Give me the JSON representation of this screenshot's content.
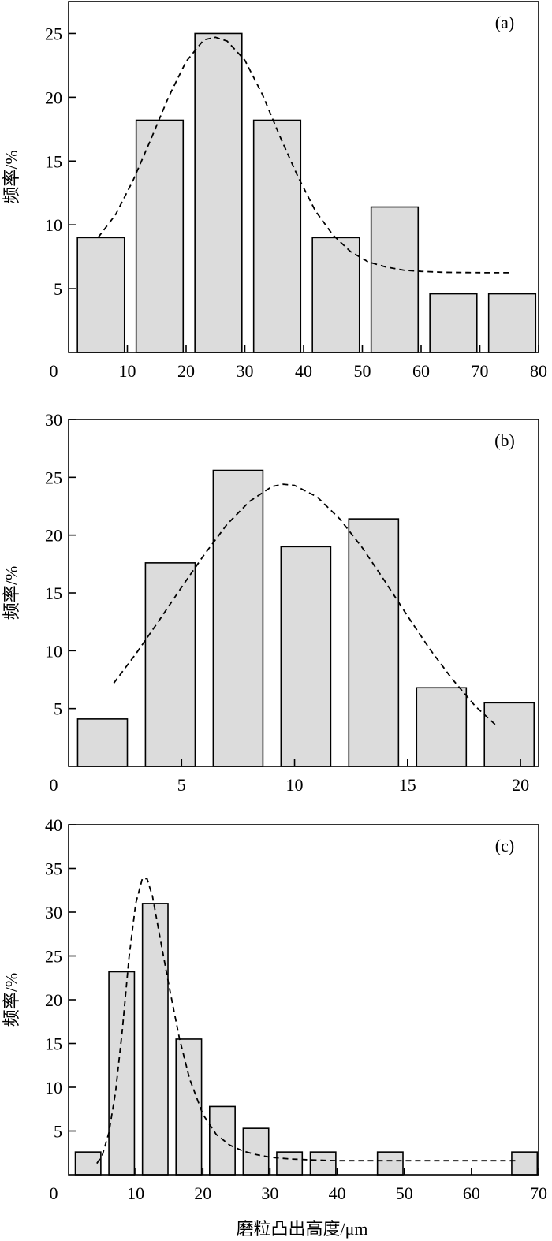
{
  "chart_data": [
    {
      "type": "bar",
      "panel_label": "(a)",
      "ylabel": "频率/%",
      "xlabel": "",
      "xlim": [
        0,
        80
      ],
      "ylim": [
        0,
        27.5
      ],
      "xticks": [
        0,
        10,
        20,
        30,
        40,
        50,
        60,
        70,
        80
      ],
      "yticks": [
        5,
        10,
        15,
        20,
        25
      ],
      "origin_label": "0",
      "bars": [
        {
          "x0": 1.5,
          "x1": 9.5,
          "value": 9.0
        },
        {
          "x0": 11.5,
          "x1": 19.5,
          "value": 18.2
        },
        {
          "x0": 21.5,
          "x1": 29.5,
          "value": 25.0
        },
        {
          "x0": 31.5,
          "x1": 39.5,
          "value": 18.2
        },
        {
          "x0": 41.5,
          "x1": 49.5,
          "value": 9.0
        },
        {
          "x0": 51.5,
          "x1": 59.5,
          "value": 11.4
        },
        {
          "x0": 61.5,
          "x1": 69.5,
          "value": 4.6
        },
        {
          "x0": 71.5,
          "x1": 79.5,
          "value": 4.6
        }
      ],
      "fit_curve": {
        "x": [
          5,
          8,
          11,
          14,
          17,
          20,
          23,
          25,
          27,
          30,
          33,
          36,
          39,
          42,
          45,
          48,
          51,
          54,
          57,
          60,
          64,
          68,
          72,
          75
        ],
        "y": [
          9.0,
          10.8,
          13.5,
          16.7,
          20.0,
          22.8,
          24.5,
          24.7,
          24.4,
          22.9,
          20.2,
          16.9,
          13.8,
          11.1,
          9.2,
          7.9,
          7.1,
          6.7,
          6.45,
          6.35,
          6.28,
          6.26,
          6.25,
          6.25
        ]
      }
    },
    {
      "type": "bar",
      "panel_label": "(b)",
      "ylabel": "频率/%",
      "xlabel": "",
      "xlim": [
        0,
        20.8
      ],
      "ylim": [
        0,
        30
      ],
      "xticks": [
        5,
        10,
        15,
        20
      ],
      "yticks": [
        5,
        10,
        15,
        20,
        25,
        30
      ],
      "origin_label": "0",
      "bars": [
        {
          "x0": 0.4,
          "x1": 2.6,
          "value": 4.1
        },
        {
          "x0": 3.4,
          "x1": 5.6,
          "value": 17.6
        },
        {
          "x0": 6.4,
          "x1": 8.6,
          "value": 25.6
        },
        {
          "x0": 9.4,
          "x1": 11.6,
          "value": 19.0
        },
        {
          "x0": 12.4,
          "x1": 14.6,
          "value": 21.4
        },
        {
          "x0": 15.4,
          "x1": 17.6,
          "value": 6.8
        },
        {
          "x0": 18.4,
          "x1": 20.6,
          "value": 5.5
        }
      ],
      "fit_curve": {
        "x": [
          2,
          3,
          4,
          5,
          6,
          7,
          8,
          9,
          9.5,
          10,
          11,
          12,
          13,
          14,
          15,
          16,
          17,
          18,
          19
        ],
        "y": [
          7.2,
          9.8,
          12.6,
          15.5,
          18.3,
          20.9,
          22.9,
          24.2,
          24.4,
          24.3,
          23.3,
          21.4,
          18.9,
          16.0,
          13.0,
          10.1,
          7.5,
          5.2,
          3.4
        ]
      }
    },
    {
      "type": "bar",
      "panel_label": "(c)",
      "ylabel": "频率/%",
      "xlabel": "磨粒凸出高度/μm",
      "xlim": [
        0,
        70
      ],
      "ylim": [
        0,
        40
      ],
      "xticks": [
        0,
        10,
        20,
        30,
        40,
        50,
        60,
        70
      ],
      "yticks": [
        5,
        10,
        15,
        20,
        25,
        30,
        35,
        40
      ],
      "origin_label": "0",
      "bars": [
        {
          "x0": 1,
          "x1": 4.8,
          "value": 2.6
        },
        {
          "x0": 6,
          "x1": 9.8,
          "value": 23.2
        },
        {
          "x0": 11,
          "x1": 14.8,
          "value": 31.0
        },
        {
          "x0": 16,
          "x1": 19.8,
          "value": 15.5
        },
        {
          "x0": 21,
          "x1": 24.8,
          "value": 7.8
        },
        {
          "x0": 26,
          "x1": 29.8,
          "value": 5.3
        },
        {
          "x0": 31,
          "x1": 34.8,
          "value": 2.6
        },
        {
          "x0": 36,
          "x1": 39.8,
          "value": 2.6
        },
        {
          "x0": 46,
          "x1": 49.8,
          "value": 2.6
        },
        {
          "x0": 66,
          "x1": 69.8,
          "value": 2.6
        }
      ],
      "fit_curve": {
        "x": [
          4.2,
          5,
          6,
          7,
          8,
          9,
          10,
          11,
          11.7,
          12.5,
          13.5,
          15,
          16.5,
          18,
          20,
          22,
          24,
          26,
          28,
          30,
          33,
          36,
          40,
          50,
          60,
          67
        ],
        "y": [
          1.3,
          2.2,
          4.8,
          9.5,
          16.5,
          24.8,
          31.0,
          33.9,
          33.8,
          31.8,
          27.6,
          21.4,
          15.6,
          11.0,
          6.9,
          4.6,
          3.4,
          2.7,
          2.3,
          2.0,
          1.8,
          1.7,
          1.6,
          1.6,
          1.6,
          1.6
        ]
      }
    }
  ],
  "colors": {
    "bar_fill": "#dcdcdc",
    "bar_stroke": "#000000",
    "axis": "#000000",
    "curve": "#000000",
    "background": "#ffffff"
  }
}
